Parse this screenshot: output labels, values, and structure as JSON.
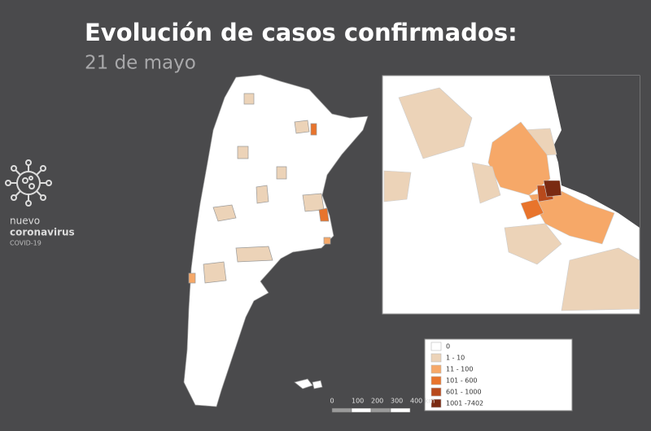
{
  "header": {
    "title": "Evolución de casos confirmados:",
    "subtitle": "21 de mayo"
  },
  "logo": {
    "lines": [
      "nuevo",
      "coronavirus",
      "COVID-19"
    ]
  },
  "legend": {
    "items": [
      {
        "label": "0",
        "color": "#ffffff"
      },
      {
        "label": "1 - 10",
        "color": "#ecd3b8"
      },
      {
        "label": "11 - 100",
        "color": "#f6a868"
      },
      {
        "label": "101 - 600",
        "color": "#e8742c"
      },
      {
        "label": "601 - 1000",
        "color": "#b84a1c"
      },
      {
        "label": "1001 -7402",
        "color": "#7a2a12"
      }
    ]
  },
  "scale_bar": {
    "labels": [
      "0",
      "100",
      "200",
      "300",
      "400 km"
    ]
  }
}
